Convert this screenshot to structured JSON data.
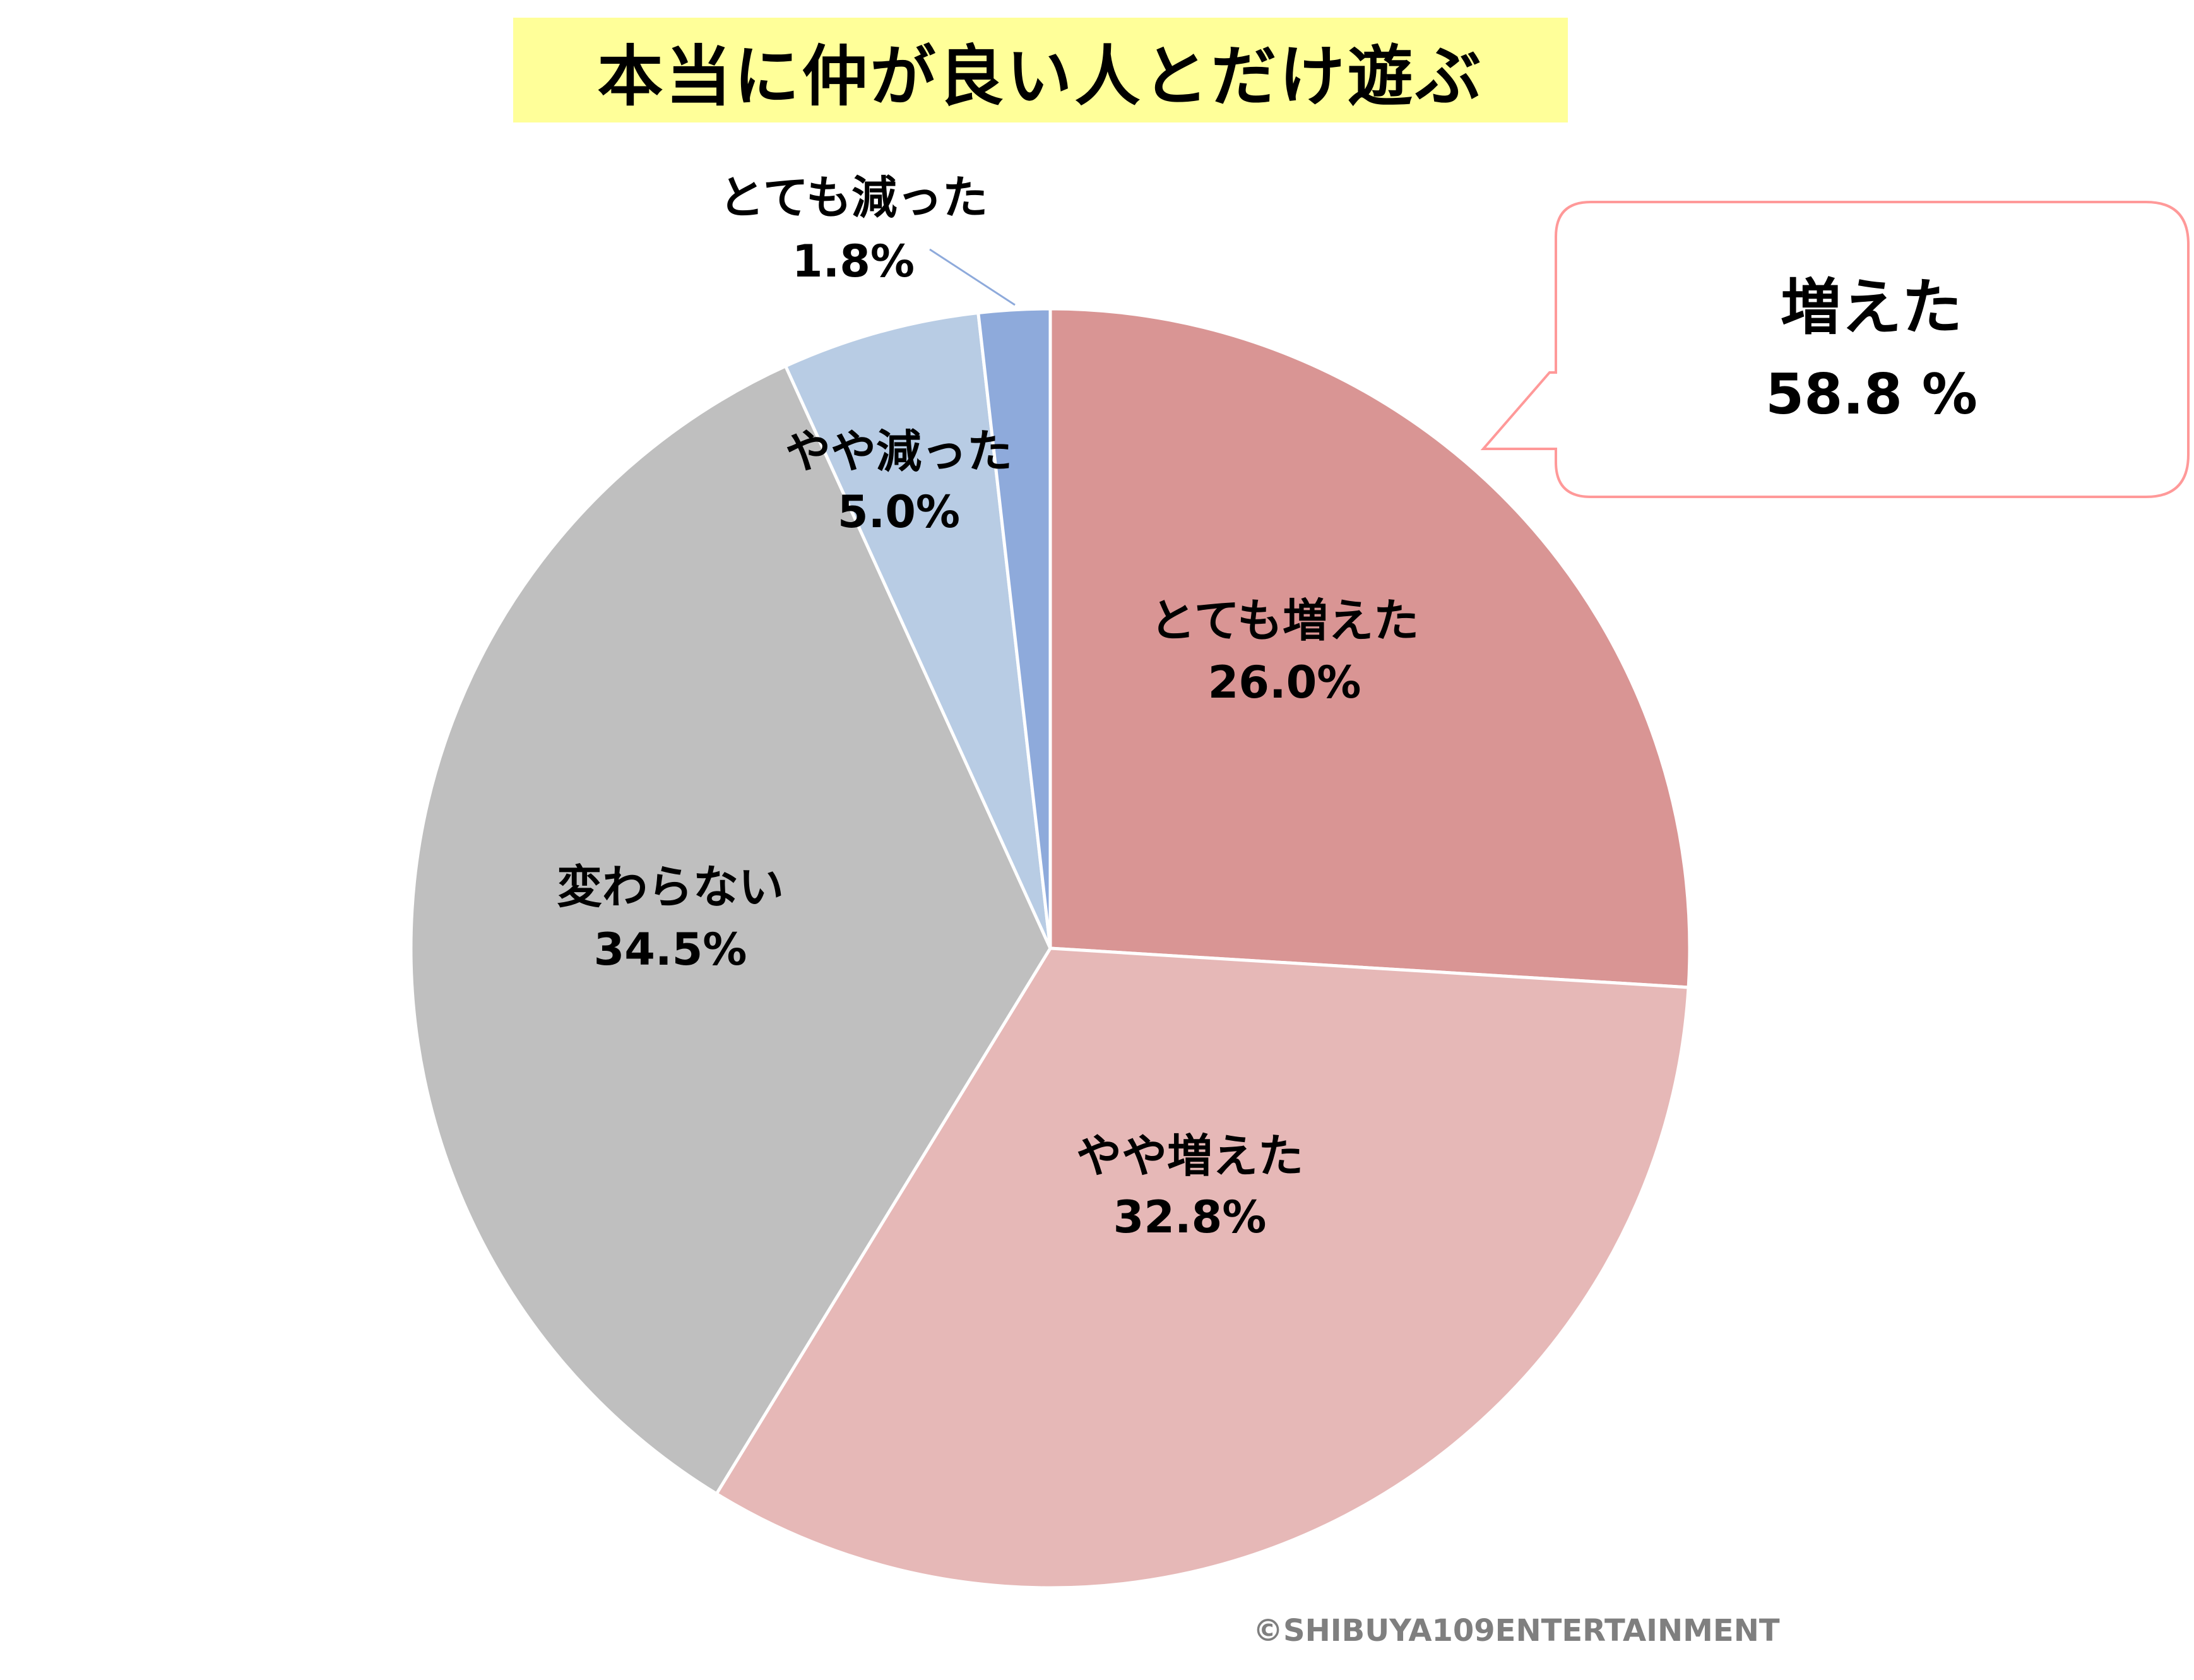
{
  "title": "本当に仲が良い人とだけ遊ぶ",
  "chart_data": {
    "type": "pie",
    "title": "本当に仲が良い人とだけ遊ぶ",
    "start": "12 o'clock, clockwise",
    "slices": [
      {
        "label": "とても増えた",
        "value": 26.0,
        "display": "26.0%",
        "color": "#d99594"
      },
      {
        "label": "やや増えた",
        "value": 32.8,
        "display": "32.8%",
        "color": "#e6b8b7"
      },
      {
        "label": "変わらない",
        "value": 34.5,
        "display": "34.5%",
        "color": "#bfbfbf"
      },
      {
        "label": "やや減った",
        "value": 5.0,
        "display": "5.0%",
        "color": "#b8cce4"
      },
      {
        "label": "とても減った",
        "value": 1.8,
        "display": "1.8%",
        "color": "#8eaadb"
      }
    ],
    "callout": {
      "label": "増えた",
      "value": "58.8 %",
      "border_color": "#ff9999"
    }
  },
  "copyright": "©SHIBUYA109ENTERTAINMENT"
}
